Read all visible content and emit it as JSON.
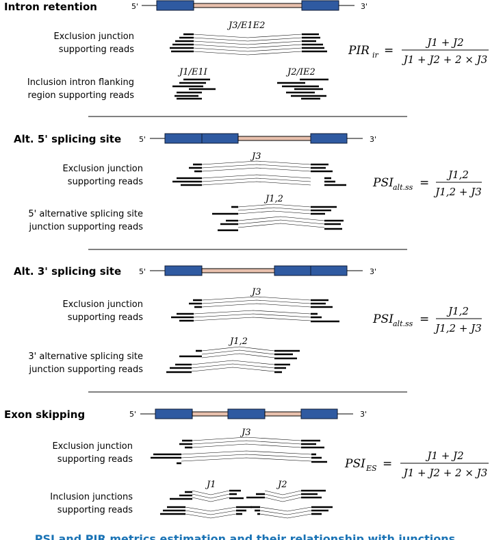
{
  "end_labels": {
    "five_prime": "5'",
    "three_prime": "3'"
  },
  "colors": {
    "exon": "#2f5aa1",
    "intron": "#e8c0ad",
    "caption": "#1a73b5"
  },
  "panels": {
    "intron_retention": {
      "title": "Intron retention",
      "row1": [
        "Exclusion junction",
        "supporting reads"
      ],
      "row2": [
        "Inclusion intron flanking",
        "region supporting reads"
      ],
      "junction_label": "J3/E1E2",
      "left_label": "J1/E1I",
      "right_label": "J2/IE2",
      "formula": {
        "lhs": "PIR",
        "sub": "ir",
        "num": "J1 + J2",
        "den": "J1 + J2 + 2 × J3"
      }
    },
    "alt5": {
      "title": "Alt. 5' splicing site",
      "row1": [
        "Exclusion junction",
        "supporting reads"
      ],
      "row2": [
        "5' alternative splicing site",
        "junction supporting reads"
      ],
      "j3": "J3",
      "j12": "J1,2",
      "formula": {
        "lhs": "PSI",
        "sub": "alt.ss",
        "num": "J1,2",
        "den": "J1,2 + J3"
      }
    },
    "alt3": {
      "title": "Alt. 3' splicing site",
      "row1": [
        "Exclusion junction",
        "supporting reads"
      ],
      "row2": [
        "3' alternative splicing site",
        "junction supporting reads"
      ],
      "j3": "J3",
      "j12": "J1,2",
      "formula": {
        "lhs": "PSI",
        "sub": "alt.ss",
        "num": "J1,2",
        "den": "J1,2 + J3"
      }
    },
    "exon_skipping": {
      "title": "Exon skipping",
      "row1": [
        "Exclusion junction",
        "supporting reads"
      ],
      "row2": [
        "Inclusion junctions",
        "supporting reads"
      ],
      "j3": "J3",
      "j1": "J1",
      "j2": "J2",
      "formula": {
        "lhs": "PSI",
        "sub": "ES",
        "num": "J1 + J2",
        "den": "J1 + J2 + 2 × J3"
      }
    }
  },
  "caption": "PSI and PIR metrics estimation and their relationship with junctions"
}
